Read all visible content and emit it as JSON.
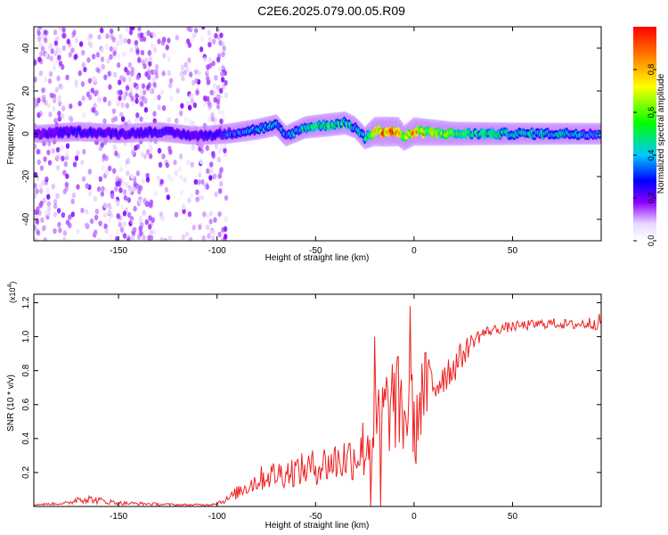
{
  "title": "C2E6.2025.079.00.05.R09",
  "chart_data": [
    {
      "type": "heatmap",
      "name": "spectrogram",
      "xlabel": "Height of straight line (km)",
      "ylabel": "Frequency (Hz)",
      "xlim": [
        -193,
        95
      ],
      "ylim": [
        -50,
        50
      ],
      "xticks": [
        -150,
        -100,
        -50,
        0,
        50
      ],
      "yticks": [
        -40,
        -20,
        0,
        20,
        40
      ],
      "colorbar": {
        "label": "Normalized spectral amplitude",
        "range": [
          0,
          1
        ],
        "ticks": [
          0.0,
          0.2,
          0.4,
          0.6,
          0.8
        ],
        "colormap": [
          "#ffffff",
          "#e0c8ff",
          "#8a00ff",
          "#0000ff",
          "#00c8ff",
          "#00ff00",
          "#ffff00",
          "#ff8000",
          "#ff0000"
        ]
      },
      "ridge": {
        "x": [
          -190,
          -170,
          -150,
          -130,
          -110,
          -95,
          -80,
          -70,
          -65,
          -55,
          -45,
          -35,
          -30,
          -25,
          -20,
          -15,
          -8,
          -5,
          0,
          20,
          50,
          90
        ],
        "freq": [
          0,
          1,
          0,
          1,
          -1,
          0,
          2,
          4,
          -1,
          3,
          4,
          5,
          3,
          -2,
          1,
          1,
          1,
          -2,
          1,
          0,
          0,
          0
        ],
        "amplitude": [
          0.2,
          0.3,
          0.25,
          0.3,
          0.25,
          0.35,
          0.4,
          0.45,
          0.4,
          0.5,
          0.55,
          0.55,
          0.45,
          0.5,
          0.95,
          1.0,
          0.95,
          0.7,
          0.9,
          0.6,
          0.5,
          0.45
        ]
      }
    },
    {
      "type": "line",
      "name": "snr",
      "xlabel": "Height of straight line (km)",
      "ylabel": "SNR (10 * v/v)",
      "y_multiplier_label": "(x10",
      "y_multiplier_exp": "4",
      "y_multiplier_close": ")",
      "xlim": [
        -193,
        95
      ],
      "ylim": [
        0,
        1.25
      ],
      "xticks": [
        -150,
        -100,
        -50,
        0,
        50
      ],
      "yticks": [
        0.2,
        0.4,
        0.6,
        0.8,
        1.0,
        1.2
      ],
      "color": "#ee2222",
      "series": {
        "x": [
          -193,
          -175,
          -170,
          -150,
          -120,
          -105,
          -100,
          -95,
          -85,
          -75,
          -65,
          -55,
          -45,
          -35,
          -30,
          -25,
          -20,
          -15,
          -10,
          -5,
          -2,
          0,
          5,
          10,
          15,
          20,
          25,
          30,
          35,
          40,
          45,
          50,
          60,
          70,
          80,
          90,
          95
        ],
        "y": [
          0.01,
          0.02,
          0.05,
          0.02,
          0.01,
          0.01,
          0.02,
          0.04,
          0.12,
          0.18,
          0.2,
          0.22,
          0.25,
          0.28,
          0.3,
          0.35,
          0.45,
          0.55,
          0.62,
          0.55,
          0.5,
          0.55,
          0.68,
          0.72,
          0.78,
          0.82,
          0.9,
          0.98,
          1.02,
          1.04,
          1.05,
          1.06,
          1.07,
          1.08,
          1.07,
          1.08,
          1.09
        ],
        "noise": [
          0.005,
          0.01,
          0.03,
          0.012,
          0.006,
          0.006,
          0.012,
          0.02,
          0.06,
          0.08,
          0.09,
          0.1,
          0.12,
          0.14,
          0.15,
          0.2,
          0.25,
          0.28,
          0.3,
          0.3,
          0.28,
          0.3,
          0.25,
          0.2,
          0.12,
          0.1,
          0.08,
          0.05,
          0.04,
          0.03,
          0.03,
          0.03,
          0.03,
          0.03,
          0.03,
          0.04,
          0.05
        ]
      },
      "spikes": [
        {
          "x": -22,
          "y": 0.0
        },
        {
          "x": -20,
          "y": 1.0
        },
        {
          "x": -17,
          "y": 0.0
        },
        {
          "x": -2,
          "y": 1.18
        },
        {
          "x": 1,
          "y": 0.25
        }
      ]
    }
  ]
}
